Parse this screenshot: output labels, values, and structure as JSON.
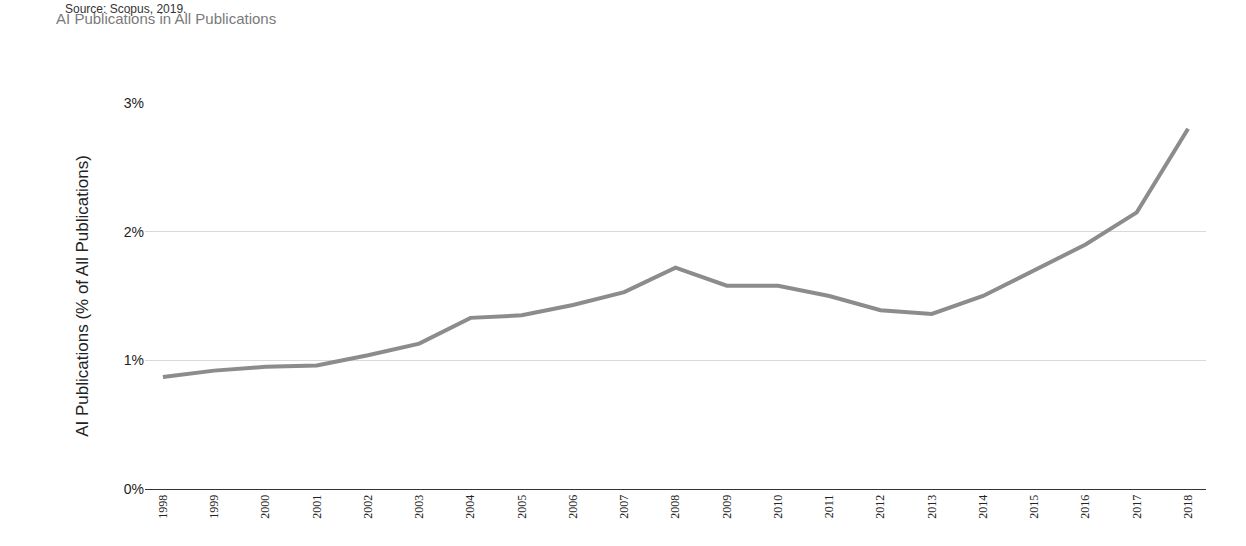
{
  "chart_data": {
    "type": "line",
    "title": "AI Publications in All Publications",
    "subtitle": "Source: Scopus, 2019.",
    "y_label": "AI Publications (% of All Publications)",
    "categories": [
      "1998",
      "1999",
      "2000",
      "2001",
      "2002",
      "2003",
      "2004",
      "2005",
      "2006",
      "2007",
      "2008",
      "2009",
      "2010",
      "2011",
      "2012",
      "2013",
      "2014",
      "2015",
      "2016",
      "2017",
      "2018"
    ],
    "values": [
      0.87,
      0.92,
      0.95,
      0.96,
      1.04,
      1.13,
      1.33,
      1.35,
      1.43,
      1.53,
      1.72,
      1.58,
      1.58,
      1.5,
      1.39,
      1.36,
      1.5,
      1.7,
      1.9,
      2.15,
      2.8
    ],
    "color": "#8c8c8c",
    "ylim": [
      0,
      3
    ],
    "yticks": [
      {
        "value": 0,
        "label": "0%"
      },
      {
        "value": 1,
        "label": "1%"
      },
      {
        "value": 2,
        "label": "2%"
      },
      {
        "value": 3,
        "label": "3%"
      }
    ],
    "grid": true
  }
}
